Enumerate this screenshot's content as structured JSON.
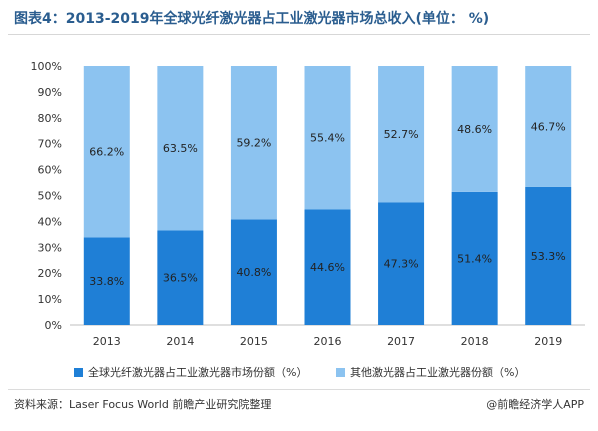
{
  "header": {
    "title": "图表4：2013-2019年全球光纤激光器占工业激光器市场总收入(单位： %)"
  },
  "chart_data": {
    "type": "bar",
    "stacked": true,
    "categories": [
      "2013",
      "2014",
      "2015",
      "2016",
      "2017",
      "2018",
      "2019"
    ],
    "series": [
      {
        "name": "全球光纤激光器占工业激光器市场份额（%）",
        "values": [
          33.8,
          36.5,
          40.8,
          44.6,
          47.3,
          51.4,
          53.3
        ],
        "labels": [
          "33.8%",
          "36.5%",
          "40.8%",
          "44.6%",
          "47.3%",
          "51.4%",
          "53.3%"
        ],
        "color": "#1f7fd6"
      },
      {
        "name": "其他激光器占工业激光器份额（%）",
        "values": [
          66.2,
          63.5,
          59.2,
          55.4,
          52.7,
          48.6,
          46.7
        ],
        "labels": [
          "66.2%",
          "63.5%",
          "59.2%",
          "55.4%",
          "52.7%",
          "48.6%",
          "46.7%"
        ],
        "color": "#8cc3f0"
      }
    ],
    "yticks": [
      "0%",
      "10%",
      "20%",
      "30%",
      "40%",
      "50%",
      "60%",
      "70%",
      "80%",
      "90%",
      "100%"
    ],
    "ylim": [
      0,
      100
    ],
    "grid": false,
    "legend_position": "bottom"
  },
  "legend": {
    "items": [
      {
        "label": "全球光纤激光器占工业激光器市场份额（%）",
        "color": "#1f7fd6"
      },
      {
        "label": "其他激光器占工业激光器份额（%）",
        "color": "#8cc3f0"
      }
    ]
  },
  "footer": {
    "source": "资料来源：Laser Focus World 前瞻产业研究院整理",
    "brand": "@前瞻经济学人APP"
  }
}
